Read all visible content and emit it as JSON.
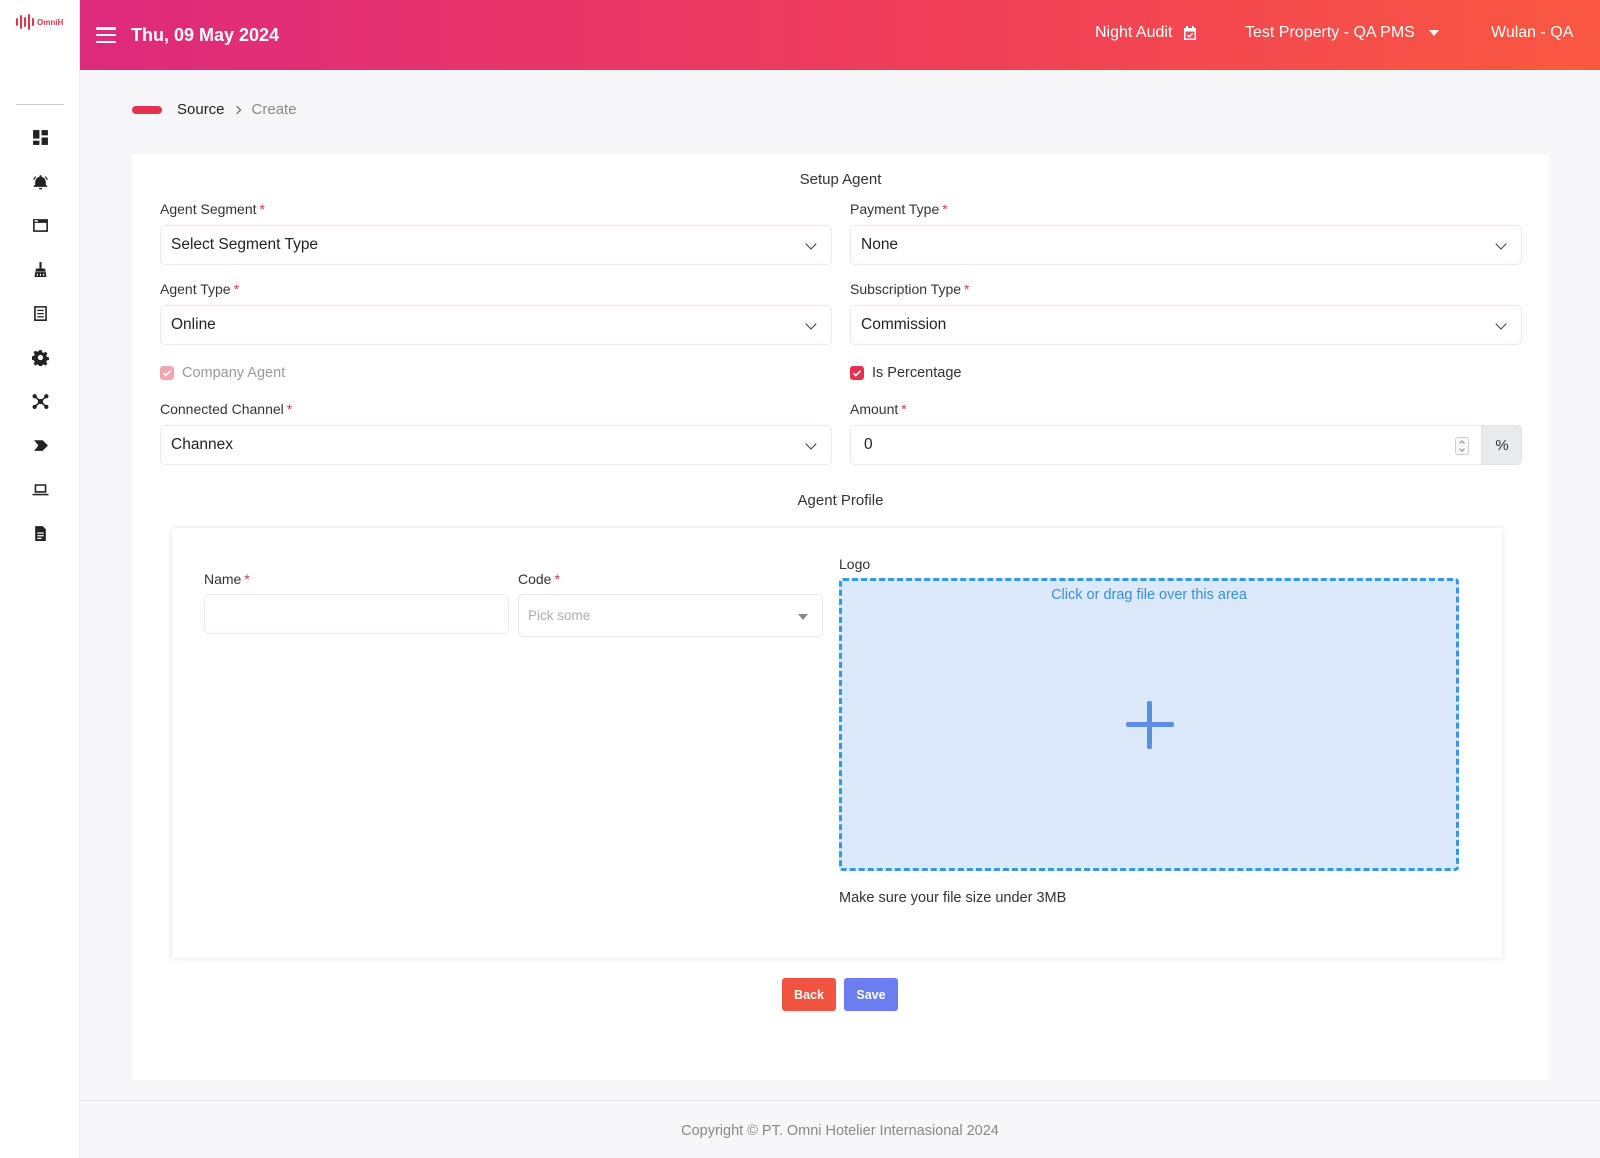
{
  "app": {
    "logo_text": "OmniH"
  },
  "header": {
    "date": "Thu, 09 May 2024",
    "night_audit": "Night Audit",
    "property": "Test Property - QA PMS",
    "user": "Wulan - QA"
  },
  "sidebar": {
    "icons": [
      "dashboard-icon",
      "concierge-bell-icon",
      "window-icon",
      "housekeeping-icon",
      "list-icon",
      "gear-icon",
      "network-icon",
      "tag-icon",
      "laptop-icon",
      "report-icon"
    ]
  },
  "breadcrumb": {
    "parent": "Source",
    "current": "Create"
  },
  "setup": {
    "title": "Setup Agent",
    "agent_segment": {
      "label": "Agent Segment",
      "value": "Select Segment Type"
    },
    "payment_type": {
      "label": "Payment Type",
      "value": "None"
    },
    "agent_type": {
      "label": "Agent Type",
      "value": "Online"
    },
    "subscription_type": {
      "label": "Subscription Type",
      "value": "Commission"
    },
    "company_agent": {
      "label": "Company Agent",
      "checked": true,
      "disabled": true
    },
    "is_percentage": {
      "label": "Is Percentage",
      "checked": true
    },
    "connected_channel": {
      "label": "Connected Channel",
      "value": "Channex"
    },
    "amount": {
      "label": "Amount",
      "value": "0",
      "suffix": "%"
    },
    "required_mark": "*"
  },
  "profile": {
    "title": "Agent Profile",
    "name": {
      "label": "Name",
      "value": ""
    },
    "code": {
      "label": "Code",
      "placeholder": "Pick some"
    },
    "logo": {
      "label": "Logo",
      "dropzone_text": "Click or drag file over this area",
      "note": "Make sure your file size under 3MB"
    }
  },
  "actions": {
    "back": "Back",
    "save": "Save"
  },
  "footer": {
    "copyright": "Copyright © PT. Omni Hotelier Internasional 2024"
  },
  "colors": {
    "brand": "#e2334e",
    "header_gradient_start": "#de2a7c",
    "header_gradient_end": "#fa5842",
    "back_button": "#f0533e",
    "save_button": "#6a7ef0",
    "dropzone_border": "#3897e5"
  }
}
